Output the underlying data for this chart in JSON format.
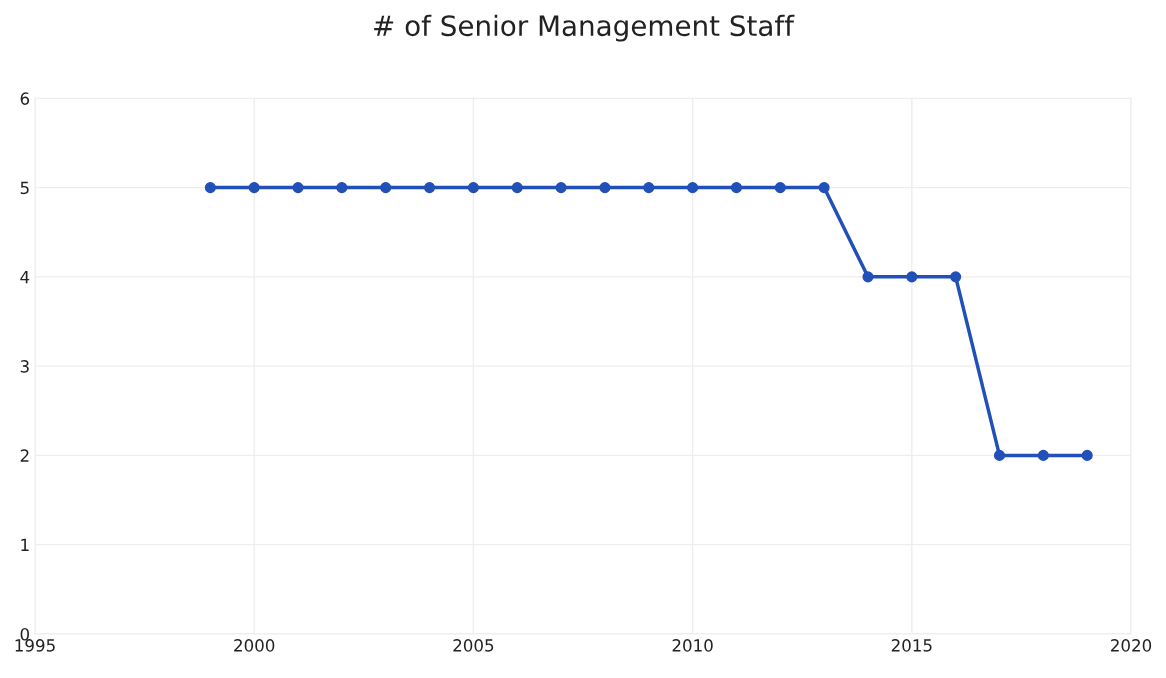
{
  "chart_data": {
    "type": "line",
    "title": "# of Senior Management Staff",
    "x": [
      1999,
      2000,
      2001,
      2002,
      2003,
      2004,
      2005,
      2006,
      2007,
      2008,
      2009,
      2010,
      2011,
      2012,
      2013,
      2014,
      2015,
      2016,
      2017,
      2018,
      2019
    ],
    "series": [
      {
        "color": "#2150b8",
        "values": [
          5,
          5,
          5,
          5,
          5,
          5,
          5,
          5,
          5,
          5,
          5,
          5,
          5,
          5,
          5,
          4,
          4,
          4,
          2,
          2,
          2
        ]
      }
    ],
    "xlim": [
      1995,
      2020
    ],
    "xticks": [
      1995,
      2000,
      2005,
      2010,
      2015,
      2020
    ],
    "ylim": [
      0,
      6
    ],
    "yticks": [
      0,
      1,
      2,
      3,
      4,
      5,
      6
    ],
    "grid": true,
    "marker": "circle",
    "line_style": "solid"
  }
}
